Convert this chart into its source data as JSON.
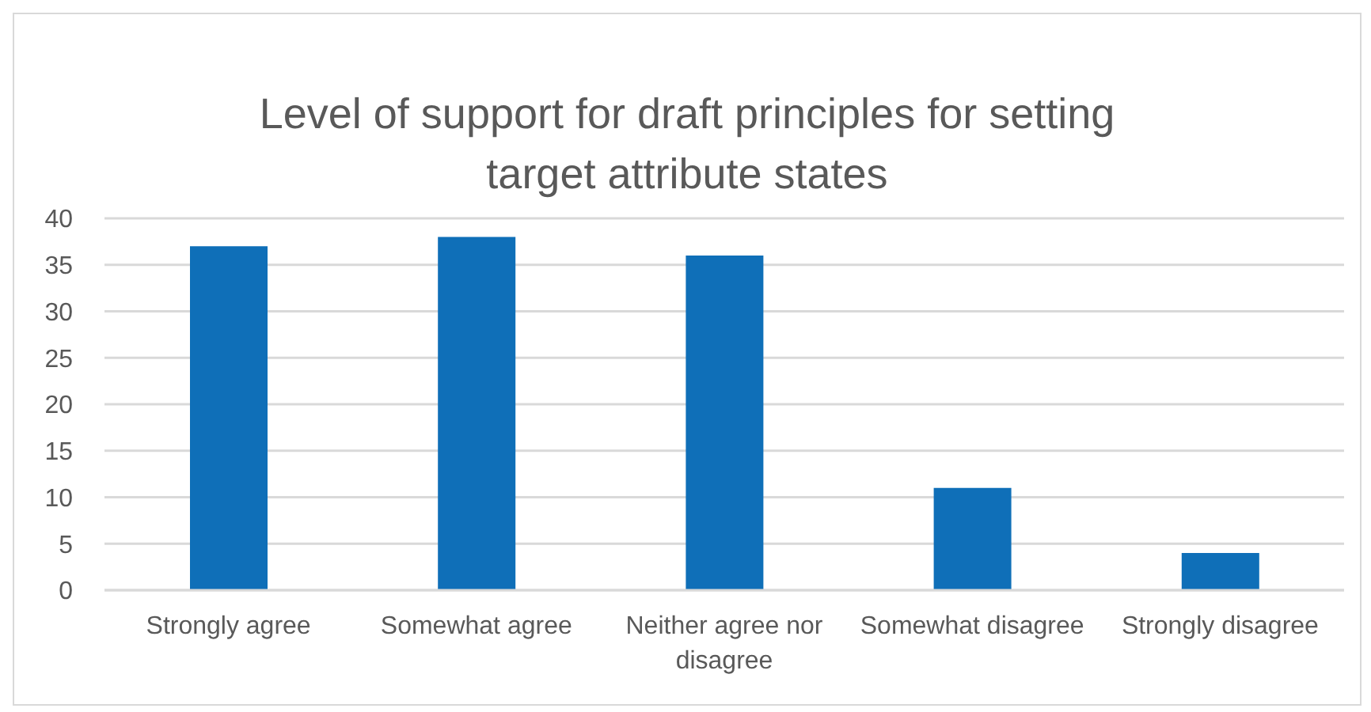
{
  "chart_data": {
    "type": "bar",
    "title": "Level of support for draft principles for setting target attribute states",
    "categories": [
      "Strongly agree",
      "Somewhat agree",
      "Neither agree nor disagree",
      "Somewhat disagree",
      "Strongly disagree"
    ],
    "values": [
      37,
      38,
      36,
      11,
      4
    ],
    "color": "#0f6fb8",
    "ylim": [
      0,
      40
    ],
    "yticks": [
      0,
      5,
      10,
      15,
      20,
      25,
      30,
      35,
      40
    ],
    "grid": "y"
  }
}
